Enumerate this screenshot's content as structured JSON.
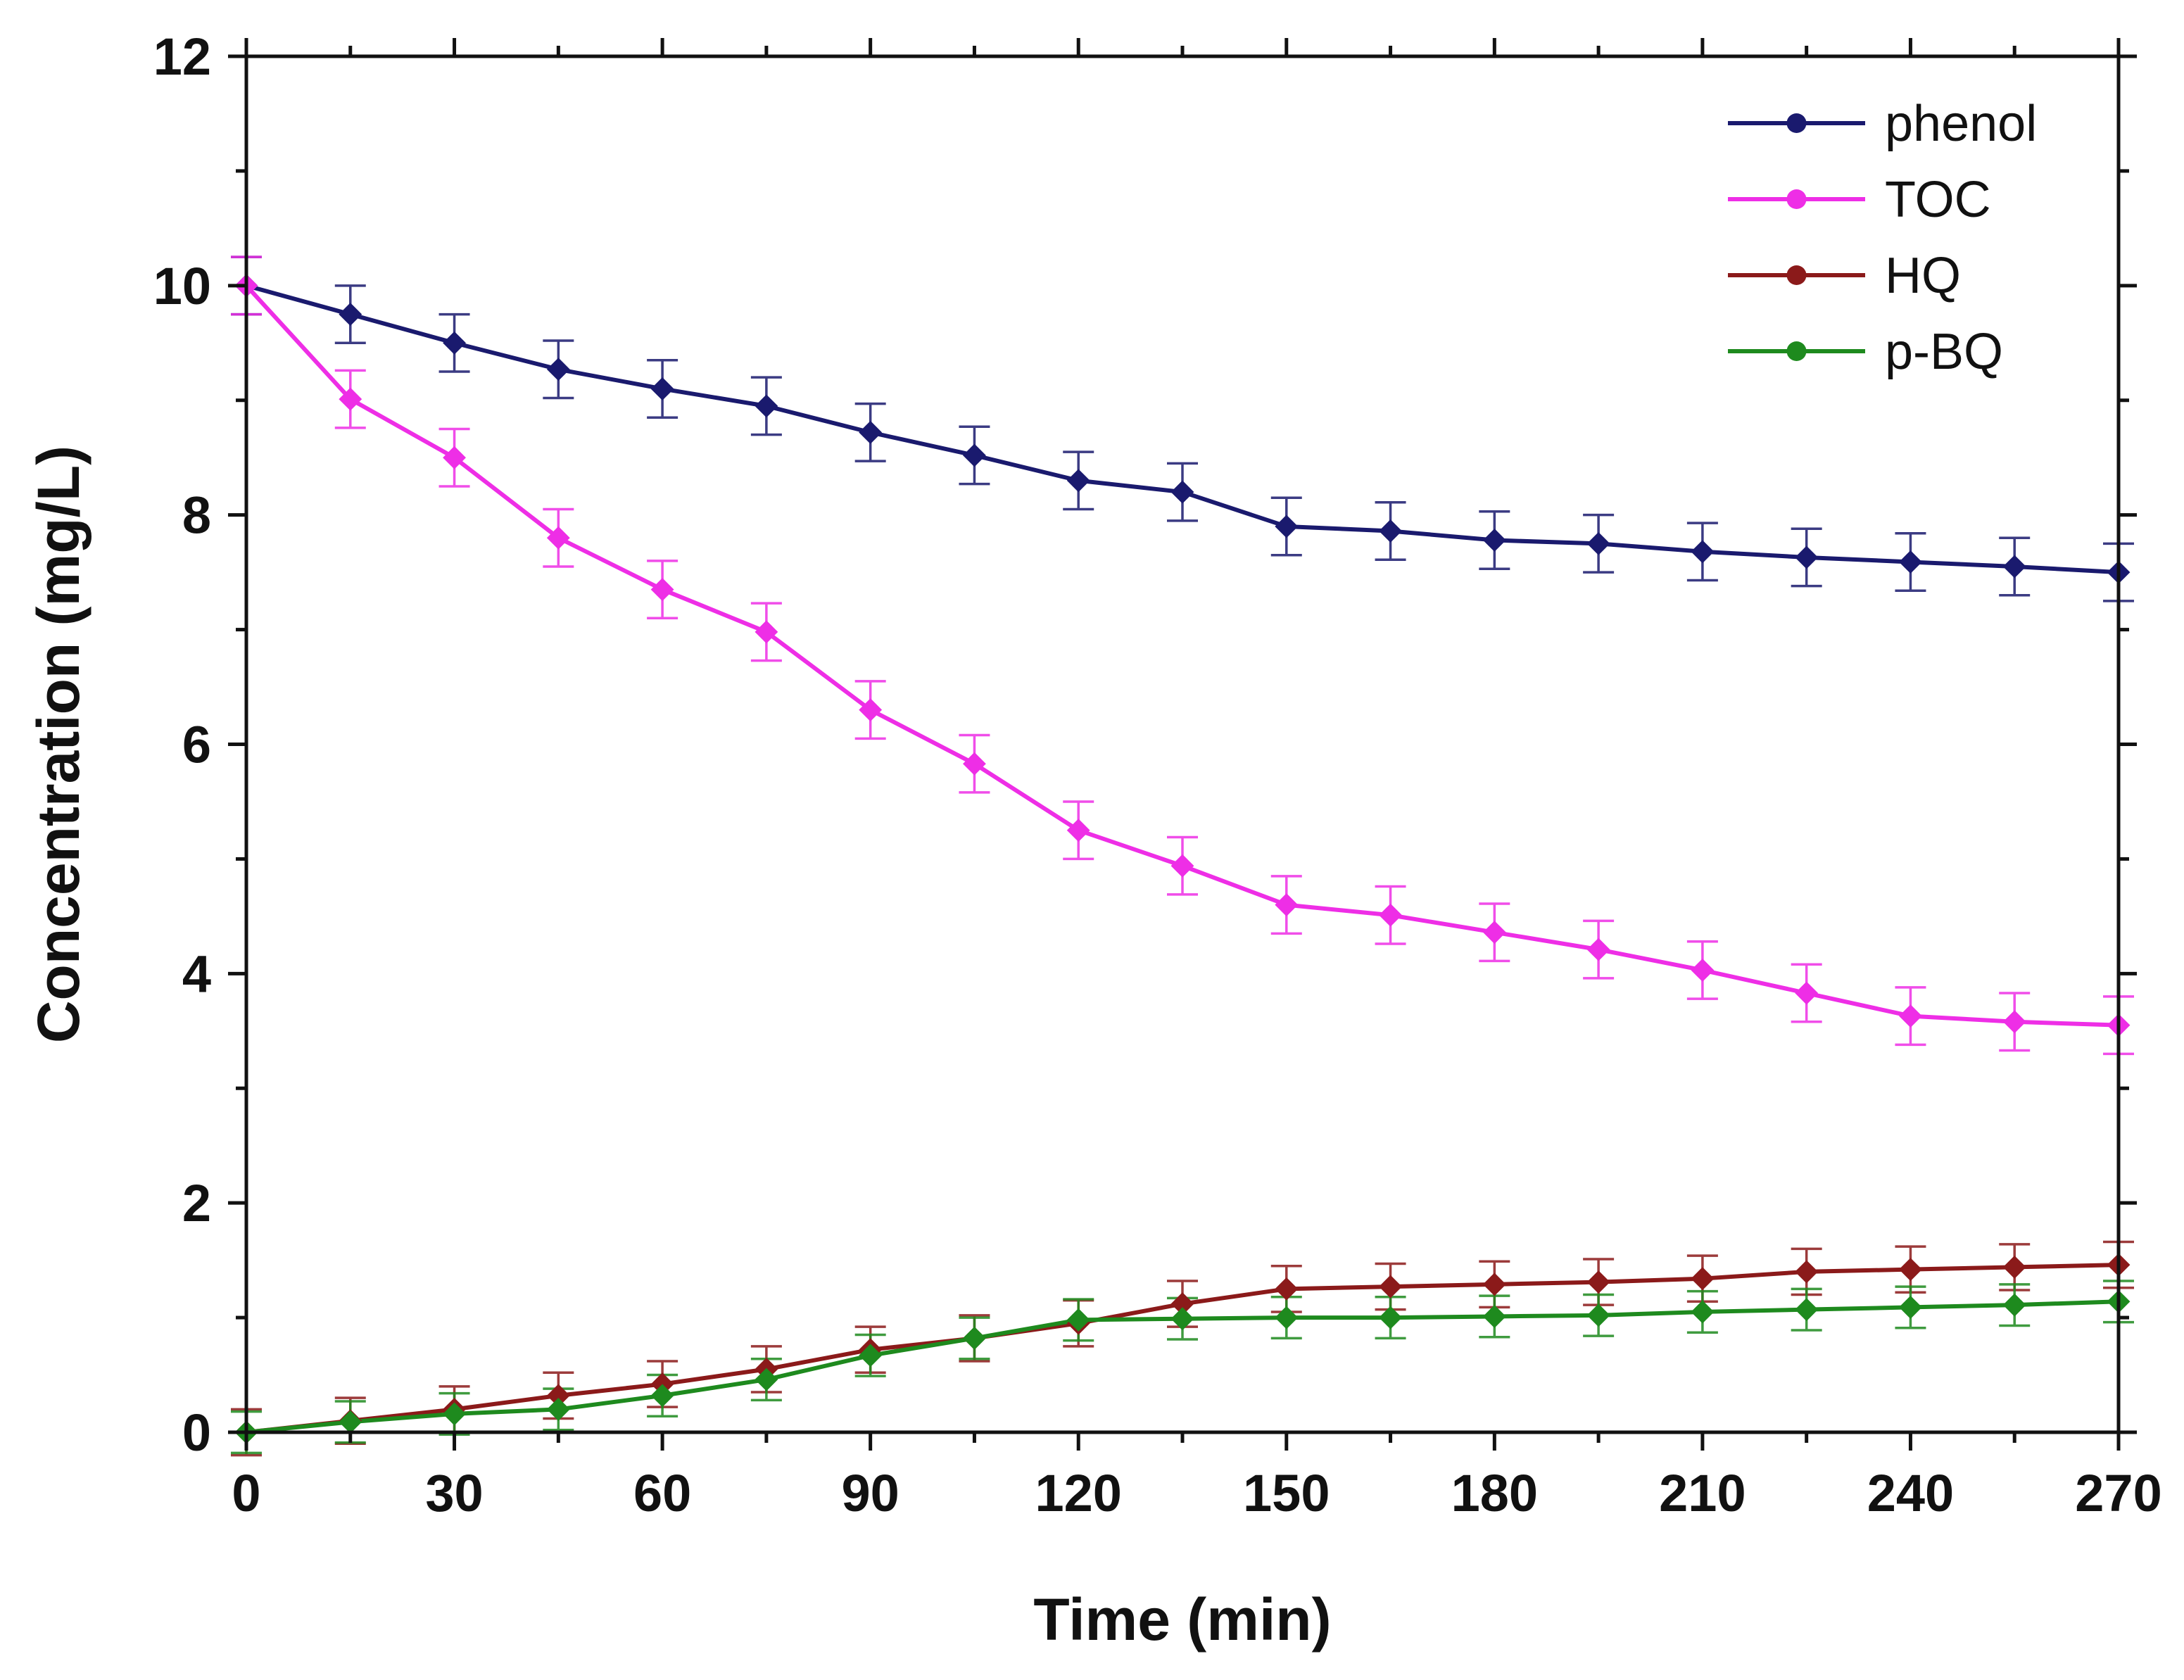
{
  "chart_data": {
    "type": "line",
    "title": "",
    "xlabel": "Time (min)",
    "ylabel": "Concentration (mg/L)",
    "xlim": [
      0,
      270
    ],
    "ylim": [
      0,
      12
    ],
    "x_ticks": [
      0,
      30,
      60,
      90,
      120,
      150,
      180,
      210,
      240,
      270
    ],
    "x_tick_labels": [
      "0",
      "30",
      "60",
      "90",
      "120",
      "150",
      "180",
      "210",
      "240",
      "270"
    ],
    "y_ticks": [
      0,
      2,
      4,
      6,
      8,
      10,
      12
    ],
    "y_tick_labels": [
      "0",
      "2",
      "4",
      "6",
      "8",
      "10",
      "12"
    ],
    "grid": false,
    "legend_position": "top-right",
    "x": [
      0,
      15,
      30,
      45,
      60,
      75,
      90,
      105,
      120,
      135,
      150,
      165,
      180,
      195,
      210,
      225,
      240,
      255,
      270
    ],
    "series": [
      {
        "name": "phenol",
        "color": "#1a1a6e",
        "values": [
          10.0,
          9.75,
          9.5,
          9.27,
          9.1,
          8.95,
          8.72,
          8.52,
          8.3,
          8.2,
          7.9,
          7.86,
          7.78,
          7.75,
          7.68,
          7.63,
          7.59,
          7.55,
          7.5
        ],
        "errors": [
          0.25,
          0.25,
          0.25,
          0.25,
          0.25,
          0.25,
          0.25,
          0.25,
          0.25,
          0.25,
          0.25,
          0.25,
          0.25,
          0.25,
          0.25,
          0.25,
          0.25,
          0.25,
          0.25
        ]
      },
      {
        "name": "TOC",
        "color": "#ee2ee6",
        "values": [
          10.0,
          9.01,
          8.5,
          7.8,
          7.35,
          6.98,
          6.3,
          5.83,
          5.25,
          4.94,
          4.6,
          4.51,
          4.36,
          4.21,
          4.03,
          3.83,
          3.63,
          3.58,
          3.55
        ],
        "errors": [
          0.25,
          0.25,
          0.25,
          0.25,
          0.25,
          0.25,
          0.25,
          0.25,
          0.25,
          0.25,
          0.25,
          0.25,
          0.25,
          0.25,
          0.25,
          0.25,
          0.25,
          0.25,
          0.25
        ]
      },
      {
        "name": "HQ",
        "color": "#8b1a1a",
        "values": [
          0,
          0.1,
          0.2,
          0.32,
          0.42,
          0.55,
          0.72,
          0.82,
          0.95,
          1.12,
          1.25,
          1.27,
          1.29,
          1.31,
          1.34,
          1.4,
          1.42,
          1.44,
          1.46
        ],
        "errors": [
          0.2,
          0.2,
          0.2,
          0.2,
          0.2,
          0.2,
          0.2,
          0.2,
          0.2,
          0.2,
          0.2,
          0.2,
          0.2,
          0.2,
          0.2,
          0.2,
          0.2,
          0.2,
          0.2
        ]
      },
      {
        "name": "p-BQ",
        "color": "#1e8a1e",
        "values": [
          0,
          0.09,
          0.16,
          0.2,
          0.32,
          0.46,
          0.67,
          0.82,
          0.98,
          0.99,
          1.0,
          1.0,
          1.01,
          1.02,
          1.05,
          1.07,
          1.09,
          1.11,
          1.14
        ],
        "errors": [
          0.18,
          0.18,
          0.18,
          0.18,
          0.18,
          0.18,
          0.18,
          0.18,
          0.18,
          0.18,
          0.18,
          0.18,
          0.18,
          0.18,
          0.18,
          0.18,
          0.18,
          0.18,
          0.18
        ]
      }
    ]
  }
}
